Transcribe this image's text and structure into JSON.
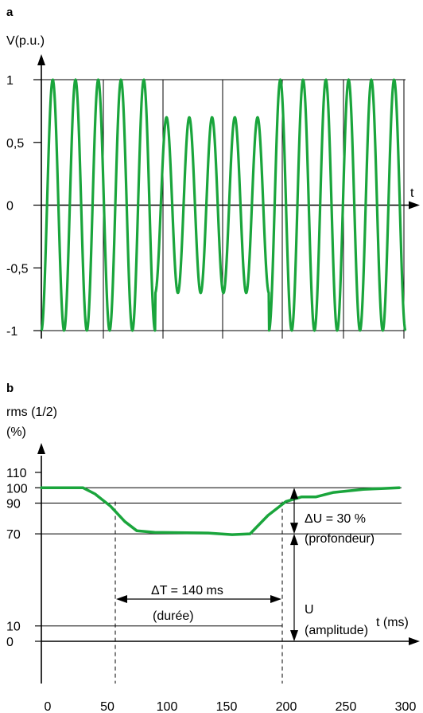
{
  "colors": {
    "curve": "#1aa53c",
    "axis": "#000000",
    "grid": "#000000"
  },
  "chart_data": [
    {
      "type": "line",
      "panel_label": "a",
      "ylabel": "V(p.u.)",
      "xlabel": "t",
      "ylim": [
        -1,
        1
      ],
      "y_ticks": [
        {
          "v": 1,
          "label": "1"
        },
        {
          "v": 0.5,
          "label": "0,5"
        },
        {
          "v": 0,
          "label": "0"
        },
        {
          "v": -0.5,
          "label": "-0,5"
        },
        {
          "v": -1,
          "label": "-1"
        }
      ],
      "grid": true,
      "signal": {
        "cycles": 16,
        "amplitude_normal": 1.0,
        "amplitude_sag": 0.7,
        "sag_start_cycle": 5,
        "sag_end_cycle": 10
      }
    },
    {
      "type": "line",
      "panel_label": "b",
      "ylabel_line1": "rms (1/2)",
      "ylabel_line2": "(%)",
      "xlabel": "t (ms)",
      "xlim": [
        0,
        300
      ],
      "ylim": [
        0,
        110
      ],
      "x_ticks": [
        "0",
        "50",
        "100",
        "150",
        "200",
        "250",
        "300"
      ],
      "y_ticks": [
        {
          "v": 110,
          "label": "110"
        },
        {
          "v": 100,
          "label": "100"
        },
        {
          "v": 90,
          "label": "90"
        },
        {
          "v": 70,
          "label": "70"
        },
        {
          "v": 10,
          "label": "10"
        },
        {
          "v": 0,
          "label": "0"
        }
      ],
      "rms_curve": [
        {
          "t": 0,
          "v": 100
        },
        {
          "t": 35,
          "v": 100
        },
        {
          "t": 45,
          "v": 96
        },
        {
          "t": 58,
          "v": 88
        },
        {
          "t": 70,
          "v": 78
        },
        {
          "t": 80,
          "v": 72
        },
        {
          "t": 95,
          "v": 71
        },
        {
          "t": 140,
          "v": 70.5
        },
        {
          "t": 160,
          "v": 69.5
        },
        {
          "t": 175,
          "v": 70
        },
        {
          "t": 190,
          "v": 82
        },
        {
          "t": 205,
          "v": 91
        },
        {
          "t": 218,
          "v": 94
        },
        {
          "t": 230,
          "v": 94
        },
        {
          "t": 245,
          "v": 97
        },
        {
          "t": 270,
          "v": 99
        },
        {
          "t": 300,
          "v": 100
        }
      ],
      "annotations": {
        "delta_t": "ΔT = 140 ms",
        "delta_t_sub": "(durée)",
        "delta_u": "ΔU = 30 %",
        "delta_u_sub": "(profondeur)",
        "u": "U",
        "u_sub": "(amplitude)"
      }
    }
  ]
}
